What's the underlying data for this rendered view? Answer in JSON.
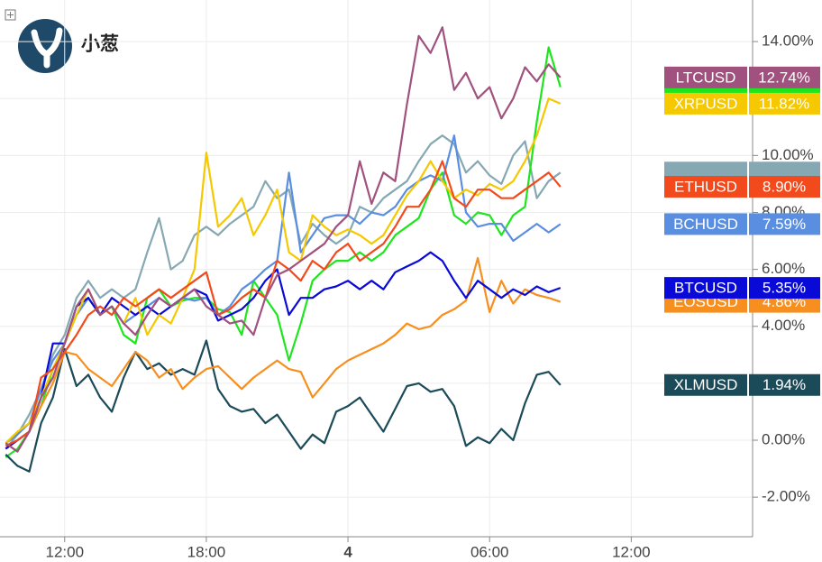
{
  "logo": {
    "text": "小葱"
  },
  "chart_data": {
    "type": "line",
    "x": [
      9.5,
      10,
      10.5,
      11,
      11.5,
      12,
      12.5,
      13,
      13.5,
      14,
      14.5,
      15,
      15.5,
      16,
      16.5,
      17,
      17.5,
      18,
      18.5,
      19,
      19.5,
      20,
      20.5,
      21,
      21.5,
      22,
      22.5,
      23,
      23.5,
      24,
      24.5,
      25,
      25.5,
      26,
      26.5,
      27,
      27.5,
      28,
      28.5,
      29,
      29.5,
      30,
      30.5,
      31,
      31.5,
      32,
      32.5,
      33
    ],
    "xlim": [
      9.26,
      41.14
    ],
    "xticks": [
      {
        "value": 12,
        "label": "12:00"
      },
      {
        "value": 18,
        "label": "18:00"
      },
      {
        "value": 24,
        "label": "4"
      },
      {
        "value": 30,
        "label": "06:00"
      },
      {
        "value": 36,
        "label": "12:00"
      }
    ],
    "ylim": [
      -3.39,
      15.46
    ],
    "yticks": [
      {
        "value": -2,
        "label": "-2.00%"
      },
      {
        "value": 0,
        "label": "0.00%"
      },
      {
        "value": 2,
        "label": "2.00%"
      },
      {
        "value": 4,
        "label": "4.00%"
      },
      {
        "value": 6,
        "label": "6.00%"
      },
      {
        "value": 8,
        "label": "8.00%"
      },
      {
        "value": 10,
        "label": "10.00%"
      },
      {
        "value": 12,
        "label": "12.00%"
      },
      {
        "value": 14,
        "label": "14.00%"
      }
    ],
    "grid": true,
    "series": [
      {
        "color": "#86a8b3",
        "values": [
          -0.3,
          0.2,
          0.9,
          1.8,
          3.0,
          3.7,
          5.0,
          5.6,
          5.0,
          5.3,
          5.0,
          5.3,
          6.6,
          7.8,
          6.0,
          6.3,
          7.2,
          7.5,
          7.2,
          7.6,
          7.9,
          8.2,
          9.1,
          8.5,
          8.8,
          6.9,
          7.6,
          7.2,
          6.9,
          7.2,
          8.2,
          8.0,
          8.5,
          8.8,
          9.1,
          9.8,
          10.4,
          10.7,
          10.4,
          9.4,
          9.8,
          9.3,
          9.0,
          10.0,
          10.5,
          8.5,
          9.1,
          9.4
        ]
      },
      {
        "color": "#1ee61e",
        "values": [
          -0.6,
          -0.3,
          0.3,
          1.2,
          2.5,
          3.4,
          4.4,
          5.0,
          4.4,
          4.7,
          3.7,
          3.4,
          5.0,
          5.3,
          4.7,
          4.9,
          5.0,
          5.0,
          4.6,
          4.5,
          3.7,
          5.6,
          5.0,
          4.4,
          2.8,
          4.1,
          5.6,
          6.0,
          6.3,
          6.3,
          6.6,
          6.3,
          6.6,
          7.2,
          7.5,
          7.8,
          8.8,
          9.4,
          7.9,
          7.6,
          8.0,
          7.9,
          7.2,
          7.9,
          8.2,
          11.2,
          13.8,
          12.4
        ]
      },
      {
        "name": "XLMUSD",
        "color": "#1b4a58",
        "end_label": "1.94%",
        "values": [
          -0.5,
          -0.9,
          -1.1,
          0.6,
          1.5,
          3.2,
          1.9,
          2.3,
          1.5,
          1.0,
          2.2,
          3.1,
          2.5,
          2.7,
          2.3,
          2.5,
          2.3,
          3.5,
          1.8,
          1.2,
          1.0,
          1.1,
          0.6,
          0.9,
          0.3,
          -0.3,
          0.2,
          -0.1,
          1.0,
          1.2,
          1.5,
          0.9,
          0.3,
          1.1,
          1.9,
          2.0,
          1.7,
          1.8,
          1.2,
          -0.2,
          0.1,
          -0.1,
          0.4,
          0.0,
          1.3,
          2.3,
          2.4,
          1.94
        ]
      },
      {
        "name": "EOSUSD",
        "color": "#f78f1e",
        "end_label": "4.86%",
        "values": [
          -0.3,
          0,
          0.3,
          1.2,
          2.0,
          3.1,
          3.0,
          2.5,
          2.2,
          1.9,
          2.5,
          3.1,
          2.8,
          2.2,
          2.5,
          1.8,
          2.2,
          2.5,
          2.6,
          2.2,
          1.8,
          2.2,
          2.5,
          2.8,
          2.5,
          2.4,
          1.5,
          2.0,
          2.5,
          2.8,
          3.0,
          3.2,
          3.4,
          3.7,
          4.1,
          3.9,
          4.0,
          4.4,
          4.6,
          4.9,
          6.4,
          4.5,
          5.6,
          4.8,
          5.3,
          5.1,
          5.0,
          4.86
        ]
      },
      {
        "name": "BCHUSD",
        "color": "#5a8ee0",
        "end_label": "7.59%",
        "values": [
          -0.1,
          0.2,
          0.6,
          1.8,
          2.8,
          3.4,
          4.4,
          5.0,
          4.4,
          4.7,
          4.1,
          4.4,
          4.7,
          5.0,
          4.7,
          5.0,
          4.9,
          5.0,
          4.4,
          4.7,
          5.3,
          5.6,
          6.0,
          6.3,
          9.4,
          6.6,
          7.2,
          7.8,
          7.9,
          7.9,
          7.6,
          8.0,
          7.9,
          8.2,
          8.8,
          9.1,
          9.3,
          9.1,
          10.7,
          8.0,
          7.5,
          7.6,
          7.6,
          7.0,
          7.3,
          7.6,
          7.3,
          7.59
        ]
      },
      {
        "name": "BTCUSD",
        "color": "#0a0ad8",
        "end_label": "5.35%",
        "values": [
          -0.3,
          0,
          0.3,
          1.5,
          3.4,
          3.4,
          4.7,
          5.0,
          4.4,
          5.0,
          4.7,
          4.4,
          4.7,
          4.4,
          4.7,
          5.0,
          5.3,
          5.1,
          4.2,
          4.4,
          4.6,
          5.0,
          5.6,
          6.0,
          4.4,
          5.0,
          5.0,
          5.3,
          5.4,
          5.6,
          5.3,
          5.6,
          5.3,
          5.9,
          6.1,
          6.3,
          6.6,
          6.3,
          5.6,
          5.0,
          5.6,
          5.3,
          5.0,
          5.3,
          5.1,
          5.4,
          5.2,
          5.35
        ]
      },
      {
        "name": "XRPUSD",
        "color": "#f5c800",
        "end_label": "11.82%",
        "values": [
          -0.1,
          0.3,
          0.6,
          1.5,
          2.5,
          3.4,
          4.4,
          5.3,
          4.4,
          4.7,
          4.1,
          5.0,
          3.7,
          4.4,
          4.1,
          5.0,
          6.0,
          10.1,
          7.5,
          7.9,
          8.5,
          7.2,
          7.9,
          8.8,
          6.6,
          6.3,
          7.9,
          7.5,
          7.2,
          7.4,
          7.2,
          6.9,
          7.2,
          7.9,
          8.6,
          9.1,
          9.8,
          9.1,
          8.5,
          8.8,
          8.6,
          9.0,
          8.8,
          9.1,
          9.8,
          10.7,
          12.0,
          11.82
        ]
      },
      {
        "name": "ETHUSD",
        "color": "#f24a1c",
        "end_label": "8.90%",
        "values": [
          -0.2,
          0,
          0.3,
          2.2,
          2.5,
          3.1,
          3.7,
          4.4,
          4.7,
          4.4,
          5.0,
          4.7,
          5.0,
          5.3,
          5.0,
          5.3,
          5.6,
          5.9,
          4.4,
          4.6,
          5.0,
          5.3,
          5.0,
          6.3,
          6.0,
          5.6,
          6.3,
          6.0,
          6.6,
          6.9,
          6.3,
          6.6,
          6.9,
          7.5,
          8.2,
          8.2,
          8.8,
          9.8,
          8.5,
          8.2,
          8.8,
          8.8,
          8.5,
          8.5,
          8.8,
          9.1,
          9.4,
          8.9
        ]
      },
      {
        "name": "LTCUSD",
        "color": "#a0517d",
        "end_label": "12.74%",
        "values": [
          -0.1,
          -0.4,
          0.3,
          1.5,
          2.2,
          3.4,
          4.7,
          5.3,
          4.4,
          4.7,
          4.1,
          3.7,
          4.4,
          5.0,
          4.7,
          5.0,
          5.3,
          4.7,
          4.4,
          4.1,
          4.2,
          3.7,
          5.0,
          5.8,
          6.0,
          6.3,
          6.6,
          6.9,
          7.5,
          7.9,
          9.8,
          8.3,
          9.4,
          9.1,
          11.8,
          14.2,
          13.6,
          14.5,
          12.3,
          12.9,
          12.0,
          12.4,
          11.3,
          12.0,
          13.1,
          12.6,
          13.2,
          12.74
        ]
      }
    ]
  }
}
